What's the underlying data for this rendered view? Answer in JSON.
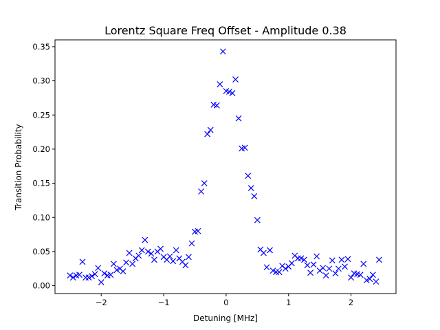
{
  "chart_data": {
    "type": "scatter",
    "title": "Lorentz Square Freq Offset - Amplitude 0.38",
    "xlabel": "Detuning [MHz]",
    "ylabel": "Transition Probability",
    "xlim": [
      -2.74,
      2.72
    ],
    "ylim": [
      -0.0115,
      0.36
    ],
    "xticks": [
      -2,
      -1,
      0,
      1,
      2
    ],
    "xtick_labels": [
      "−2",
      "−1",
      "0",
      "1",
      "2"
    ],
    "yticks": [
      0.0,
      0.05,
      0.1,
      0.15,
      0.2,
      0.25,
      0.3,
      0.35
    ],
    "ytick_labels": [
      "0.00",
      "0.05",
      "0.10",
      "0.15",
      "0.20",
      "0.25",
      "0.30",
      "0.35"
    ],
    "grid": false,
    "marker": "x",
    "color": "#0000ff",
    "series": [
      {
        "x": [
          -2.5,
          -2.45,
          -2.4,
          -2.35,
          -2.3,
          -2.25,
          -2.2,
          -2.15,
          -2.1,
          -2.05,
          -2.0,
          -1.95,
          -1.9,
          -1.85,
          -1.8,
          -1.75,
          -1.7,
          -1.65,
          -1.6,
          -1.55,
          -1.5,
          -1.45,
          -1.4,
          -1.35,
          -1.3,
          -1.25,
          -1.2,
          -1.15,
          -1.1,
          -1.05,
          -1.0,
          -0.95,
          -0.9,
          -0.85,
          -0.8,
          -0.75,
          -0.7,
          -0.65,
          -0.6,
          -0.55,
          -0.5,
          -0.45,
          -0.4,
          -0.35,
          -0.3,
          -0.25,
          -0.2,
          -0.15,
          -0.1,
          -0.05,
          0.0,
          0.05,
          0.1,
          0.15,
          0.2,
          0.25,
          0.3,
          0.35,
          0.4,
          0.45,
          0.5,
          0.55,
          0.6,
          0.65,
          0.7,
          0.75,
          0.8,
          0.85,
          0.9,
          0.95,
          1.0,
          1.05,
          1.1,
          1.15,
          1.2,
          1.25,
          1.3,
          1.35,
          1.4,
          1.45,
          1.5,
          1.55,
          1.6,
          1.65,
          1.7,
          1.75,
          1.8,
          1.85,
          1.9,
          1.95,
          2.0,
          2.05,
          2.1,
          2.15,
          2.2,
          2.25,
          2.3,
          2.35,
          2.4,
          2.45
        ],
        "y": [
          0.015,
          0.012,
          0.015,
          0.016,
          0.035,
          0.012,
          0.012,
          0.014,
          0.017,
          0.026,
          0.005,
          0.018,
          0.015,
          0.016,
          0.032,
          0.023,
          0.025,
          0.021,
          0.034,
          0.048,
          0.032,
          0.04,
          0.044,
          0.052,
          0.067,
          0.05,
          0.047,
          0.038,
          0.05,
          0.054,
          0.042,
          0.038,
          0.043,
          0.036,
          0.052,
          0.04,
          0.035,
          0.03,
          0.042,
          0.062,
          0.079,
          0.08,
          0.138,
          0.15,
          0.222,
          0.228,
          0.265,
          0.264,
          0.295,
          0.343,
          0.285,
          0.284,
          0.282,
          0.302,
          0.245,
          0.201,
          0.202,
          0.161,
          0.143,
          0.131,
          0.096,
          0.053,
          0.048,
          0.027,
          0.052,
          0.022,
          0.02,
          0.02,
          0.029,
          0.025,
          0.028,
          0.033,
          0.044,
          0.04,
          0.04,
          0.038,
          0.03,
          0.019,
          0.031,
          0.043,
          0.022,
          0.026,
          0.015,
          0.025,
          0.037,
          0.018,
          0.025,
          0.038,
          0.028,
          0.039,
          0.012,
          0.018,
          0.017,
          0.016,
          0.032,
          0.008,
          0.01,
          0.016,
          0.006,
          0.038
        ]
      }
    ]
  }
}
